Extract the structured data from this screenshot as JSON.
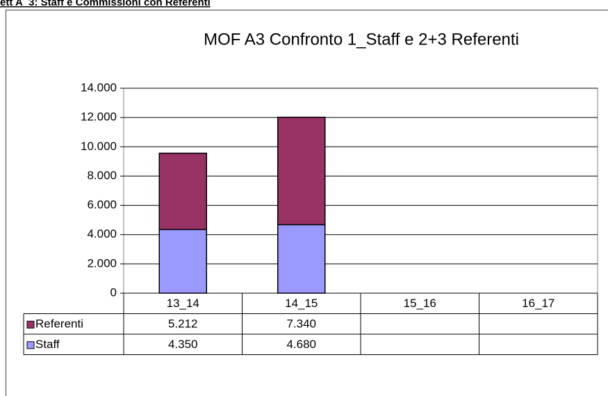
{
  "heading": "ett A_3: Staff e Commissioni con Referenti",
  "chart_data": {
    "type": "bar",
    "stacked": true,
    "title": "MOF A3 Confronto 1_Staff e 2+3 Referenti",
    "categories": [
      "13_14",
      "14_15",
      "15_16",
      "16_17"
    ],
    "series": [
      {
        "name": "Staff",
        "color": "#9999ff",
        "values": [
          4350,
          4680,
          null,
          null
        ],
        "value_labels": [
          "4.350",
          "4.680",
          null,
          null
        ]
      },
      {
        "name": "Referenti",
        "color": "#993366",
        "values": [
          5212,
          7340,
          null,
          null
        ],
        "value_labels": [
          "5.212",
          "7.340",
          null,
          null
        ]
      }
    ],
    "ylim": [
      0,
      14000
    ],
    "yticks": [
      0,
      {
        "value": 2000,
        "label": "2.000"
      },
      {
        "value": 4000,
        "label": "4.000"
      },
      {
        "value": 6000,
        "label": "6.000"
      },
      {
        "value": 8000,
        "label": "8.000"
      },
      {
        "value": 10000,
        "label": "10.000"
      },
      {
        "value": 12000,
        "label": "12.000"
      },
      {
        "value": 14000,
        "label": "14.000"
      }
    ],
    "grid": true
  }
}
